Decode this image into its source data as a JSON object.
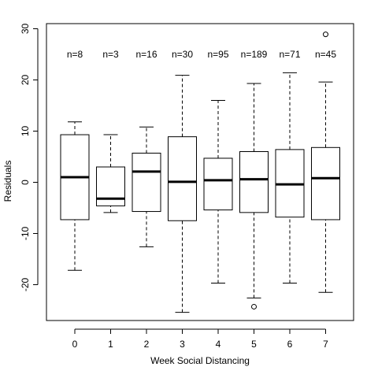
{
  "chart_data": {
    "type": "box",
    "xlabel": "Week Social Distancing",
    "ylabel": "Residuals",
    "ylim": [
      -27,
      31
    ],
    "yticks": [
      -20,
      -10,
      0,
      10,
      20,
      30
    ],
    "grid": false,
    "legend": "none",
    "groups": [
      {
        "label": "0",
        "n_label": "n=8",
        "min": -17.2,
        "q1": -7.3,
        "median": 1.0,
        "q3": 9.3,
        "max": 11.8,
        "outliers": []
      },
      {
        "label": "1",
        "n_label": "n=3",
        "min": -5.9,
        "q1": -4.6,
        "median": -3.2,
        "q3": 3.0,
        "max": 9.3,
        "outliers": []
      },
      {
        "label": "2",
        "n_label": "n=16",
        "min": -12.6,
        "q1": -5.7,
        "median": 2.1,
        "q3": 5.7,
        "max": 10.8,
        "outliers": []
      },
      {
        "label": "3",
        "n_label": "n=30",
        "min": -25.4,
        "q1": -7.5,
        "median": 0.1,
        "q3": 8.9,
        "max": 20.9,
        "outliers": []
      },
      {
        "label": "4",
        "n_label": "n=95",
        "min": -19.7,
        "q1": -5.4,
        "median": 0.4,
        "q3": 4.7,
        "max": 16.0,
        "outliers": []
      },
      {
        "label": "5",
        "n_label": "n=189",
        "min": -22.6,
        "q1": -5.9,
        "median": 0.6,
        "q3": 6.0,
        "max": 19.3,
        "outliers": [
          -24.3
        ]
      },
      {
        "label": "6",
        "n_label": "n=71",
        "min": -19.7,
        "q1": -6.8,
        "median": -0.4,
        "q3": 6.4,
        "max": 21.4,
        "outliers": []
      },
      {
        "label": "7",
        "n_label": "n=45",
        "min": -21.5,
        "q1": -7.3,
        "median": 0.8,
        "q3": 6.8,
        "max": 19.6,
        "outliers": [
          28.9
        ]
      }
    ]
  }
}
